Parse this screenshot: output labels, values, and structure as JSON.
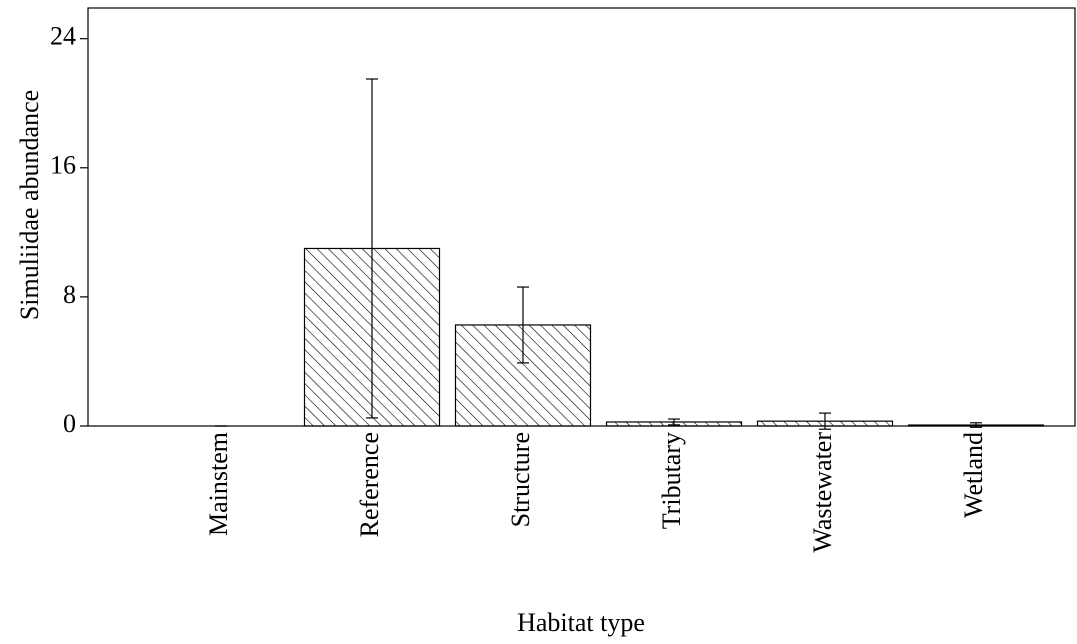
{
  "chart_data": {
    "type": "bar",
    "x_label": "Habitat type",
    "y_label": "Simuliidae abundance",
    "categories": [
      "Mainstem",
      "Reference",
      "Structure",
      "Tributary",
      "Wastewater",
      "Wetland"
    ],
    "values": [
      0,
      11.0,
      6.26,
      0.25,
      0.3,
      0.06
    ],
    "errors": [
      0,
      10.5,
      2.35,
      0.18,
      0.5,
      0.14
    ],
    "color": "#000000",
    "ylim": [
      0,
      25.9
    ],
    "yticks": [
      0,
      8,
      16,
      24
    ],
    "grid": false
  }
}
